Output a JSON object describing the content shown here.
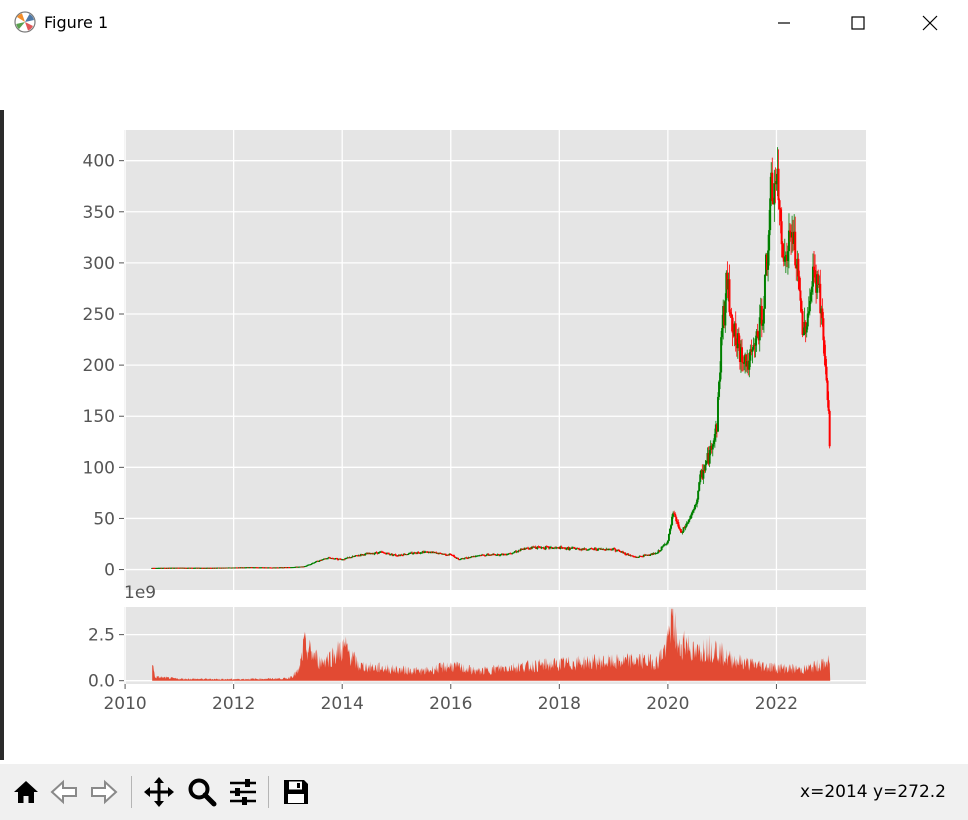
{
  "window": {
    "title": "Figure 1",
    "icons": {
      "app": "matplotlib-icon",
      "minimize": "minimize-icon",
      "maximize": "maximize-icon",
      "close": "close-icon"
    }
  },
  "toolbar": {
    "buttons": [
      {
        "name": "home-button",
        "icon": "home-icon"
      },
      {
        "name": "back-button",
        "icon": "arrow-left-icon"
      },
      {
        "name": "forward-button",
        "icon": "arrow-right-icon"
      },
      {
        "name": "pan-button",
        "icon": "move-icon"
      },
      {
        "name": "zoom-button",
        "icon": "magnifier-icon"
      },
      {
        "name": "configure-subplots-button",
        "icon": "sliders-icon"
      },
      {
        "name": "save-button",
        "icon": "floppy-icon"
      }
    ],
    "coords": "x=2014 y=272.2"
  },
  "colors": {
    "up": "#008000",
    "down": "#ff0000",
    "volume": "#e24a33",
    "axes_bg": "#e5e5e5",
    "grid": "#ffffff",
    "tick": "#555555"
  },
  "chart_data": [
    {
      "type": "candlestick",
      "title": "",
      "xlabel": "",
      "ylabel": "",
      "xlim": [
        2009.98,
        2023.65
      ],
      "ylim": [
        -20,
        430
      ],
      "x_ticks": [
        2010,
        2012,
        2014,
        2016,
        2018,
        2020,
        2022
      ],
      "y_ticks": [
        0,
        50,
        100,
        150,
        200,
        250,
        300,
        350,
        400
      ],
      "y_tick_labels": [
        "0",
        "50",
        "100",
        "150",
        "200",
        "250",
        "300",
        "350",
        "400"
      ],
      "grid": true,
      "price_path": [
        [
          2010.5,
          1.6
        ],
        [
          2011.0,
          1.8
        ],
        [
          2011.5,
          1.7
        ],
        [
          2012.0,
          2.0
        ],
        [
          2012.3,
          2.3
        ],
        [
          2012.7,
          2.0
        ],
        [
          2013.0,
          2.3
        ],
        [
          2013.3,
          3.0
        ],
        [
          2013.5,
          7.5
        ],
        [
          2013.75,
          11.5
        ],
        [
          2014.0,
          10.0
        ],
        [
          2014.3,
          14.0
        ],
        [
          2014.7,
          17.0
        ],
        [
          2015.0,
          14.0
        ],
        [
          2015.5,
          17.5
        ],
        [
          2016.0,
          14.5
        ],
        [
          2016.15,
          10.0
        ],
        [
          2016.5,
          14.0
        ],
        [
          2017.0,
          15.0
        ],
        [
          2017.5,
          22.0
        ],
        [
          2018.0,
          21.0
        ],
        [
          2018.5,
          20.0
        ],
        [
          2019.0,
          20.0
        ],
        [
          2019.4,
          12.0
        ],
        [
          2019.8,
          16.0
        ],
        [
          2020.0,
          28.0
        ],
        [
          2020.1,
          55.0
        ],
        [
          2020.25,
          35.0
        ],
        [
          2020.5,
          60.0
        ],
        [
          2020.6,
          90.0
        ],
        [
          2020.75,
          110.0
        ],
        [
          2020.9,
          140.0
        ],
        [
          2021.0,
          240.0
        ],
        [
          2021.1,
          280.0
        ],
        [
          2021.25,
          220.0
        ],
        [
          2021.5,
          200.0
        ],
        [
          2021.75,
          250.0
        ],
        [
          2021.9,
          360.0
        ],
        [
          2022.0,
          380.0
        ],
        [
          2022.15,
          300.0
        ],
        [
          2022.3,
          330.0
        ],
        [
          2022.5,
          230.0
        ],
        [
          2022.7,
          290.0
        ],
        [
          2022.8,
          270.0
        ],
        [
          2022.9,
          200.0
        ],
        [
          2022.95,
          160.0
        ],
        [
          2022.99,
          115.0
        ]
      ]
    },
    {
      "type": "area",
      "title": "",
      "xlabel": "",
      "ylabel": "",
      "scale_label": "1e9",
      "xlim": [
        2009.98,
        2023.65
      ],
      "ylim": [
        -0.18,
        4.0
      ],
      "x_ticks": [
        2010,
        2012,
        2014,
        2016,
        2018,
        2020,
        2022
      ],
      "x_tick_labels": [
        "2010",
        "2012",
        "2014",
        "2016",
        "2018",
        "2020",
        "2022"
      ],
      "y_ticks": [
        0,
        2.5
      ],
      "y_tick_labels": [
        "0.0",
        "2.5"
      ],
      "grid": true,
      "volume_path": [
        [
          2010.5,
          1.0
        ],
        [
          2010.55,
          0.2
        ],
        [
          2011.0,
          0.1
        ],
        [
          2012.0,
          0.08
        ],
        [
          2013.0,
          0.12
        ],
        [
          2013.2,
          0.5
        ],
        [
          2013.3,
          1.9
        ],
        [
          2013.6,
          1.0
        ],
        [
          2013.85,
          1.4
        ],
        [
          2014.05,
          1.8
        ],
        [
          2014.3,
          0.8
        ],
        [
          2015.0,
          0.6
        ],
        [
          2015.5,
          0.5
        ],
        [
          2016.0,
          0.8
        ],
        [
          2016.5,
          0.5
        ],
        [
          2017.0,
          0.7
        ],
        [
          2017.5,
          0.8
        ],
        [
          2018.0,
          0.9
        ],
        [
          2018.5,
          1.0
        ],
        [
          2019.0,
          1.0
        ],
        [
          2019.5,
          1.1
        ],
        [
          2019.8,
          1.0
        ],
        [
          2020.0,
          2.0
        ],
        [
          2020.07,
          3.8
        ],
        [
          2020.2,
          1.6
        ],
        [
          2020.3,
          2.2
        ],
        [
          2020.5,
          1.4
        ],
        [
          2020.7,
          1.8
        ],
        [
          2020.9,
          1.7
        ],
        [
          2021.1,
          1.2
        ],
        [
          2021.5,
          0.9
        ],
        [
          2022.0,
          0.7
        ],
        [
          2022.5,
          0.6
        ],
        [
          2022.99,
          1.0
        ]
      ]
    }
  ]
}
